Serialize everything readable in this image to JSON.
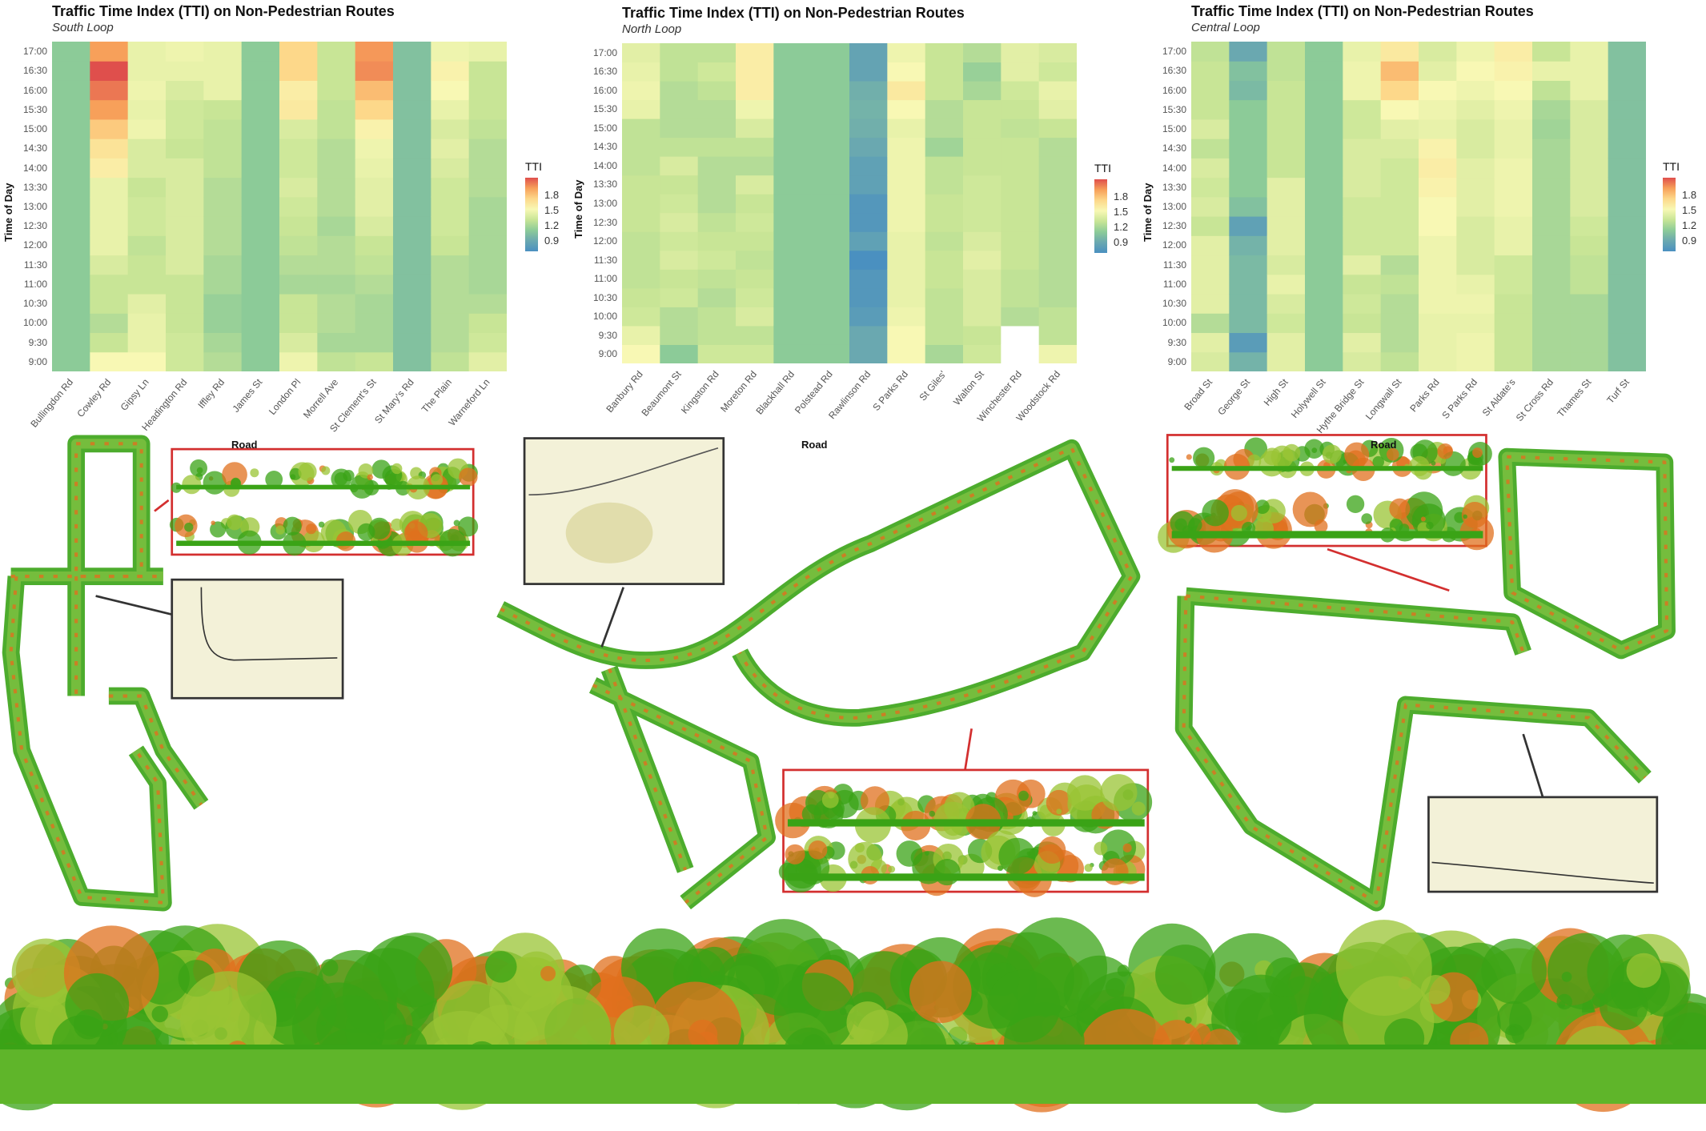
{
  "legend": {
    "title": "TTI",
    "ticks": [
      "1.8",
      "1.5",
      "1.2",
      "0.9"
    ]
  },
  "times": [
    "9:00",
    "9:30",
    "10:00",
    "10:30",
    "11:00",
    "11:30",
    "12:00",
    "12:30",
    "13:00",
    "13:30",
    "14:00",
    "14:30",
    "15:00",
    "15:30",
    "16:00",
    "16:30",
    "17:00"
  ],
  "colors": {
    "inset_red": "#d32f2f",
    "inset_black": "#333333",
    "cloud_green": "#3aa316",
    "cloud_orange": "#e0701e"
  },
  "chart_data": [
    {
      "type": "heatmap",
      "title": "Traffic Time Index (TTI) on Non-Pedestrian Routes",
      "subtitle": "South Loop",
      "xlabel": "Road",
      "ylabel": "Time of Day",
      "legend": "right",
      "color_range": [
        0.85,
        1.95
      ],
      "categories": [
        "Bullingdon Rd",
        "Cowley Rd",
        "Gipsy Ln",
        "Headington Rd",
        "Iffley Rd",
        "James St",
        "London Pl",
        "Morrell Ave",
        "St Clement's St",
        "St Mary's Rd",
        "The Plain",
        "Warneford Ln"
      ],
      "values": [
        [
          1.05,
          1.05,
          1.05,
          1.05,
          1.05,
          1.05,
          1.05,
          1.05,
          1.05,
          1.05,
          1.05,
          1.05,
          1.05,
          1.05,
          1.05,
          1.05,
          1.05
        ],
        [
          1.35,
          1.2,
          1.15,
          1.2,
          1.2,
          1.25,
          1.3,
          1.3,
          1.3,
          1.3,
          1.4,
          1.45,
          1.55,
          1.7,
          1.8,
          1.9,
          1.7
        ],
        [
          1.35,
          1.3,
          1.3,
          1.28,
          1.2,
          1.2,
          1.18,
          1.22,
          1.22,
          1.2,
          1.25,
          1.25,
          1.32,
          1.3,
          1.32,
          1.3,
          1.3
        ],
        [
          1.22,
          1.22,
          1.2,
          1.2,
          1.2,
          1.25,
          1.25,
          1.25,
          1.25,
          1.25,
          1.25,
          1.2,
          1.22,
          1.22,
          1.25,
          1.3,
          1.32
        ],
        [
          1.15,
          1.12,
          1.08,
          1.08,
          1.12,
          1.12,
          1.15,
          1.15,
          1.15,
          1.15,
          1.18,
          1.18,
          1.18,
          1.2,
          1.3,
          1.3,
          1.3
        ],
        [
          1.05,
          1.05,
          1.05,
          1.05,
          1.05,
          1.05,
          1.05,
          1.05,
          1.05,
          1.05,
          1.05,
          1.05,
          1.05,
          1.05,
          1.05,
          1.05,
          1.05
        ],
        [
          1.32,
          1.25,
          1.2,
          1.2,
          1.12,
          1.15,
          1.18,
          1.2,
          1.22,
          1.25,
          1.22,
          1.22,
          1.25,
          1.42,
          1.4,
          1.5,
          1.5
        ],
        [
          1.18,
          1.12,
          1.15,
          1.15,
          1.12,
          1.15,
          1.15,
          1.12,
          1.15,
          1.15,
          1.15,
          1.15,
          1.18,
          1.18,
          1.2,
          1.2,
          1.2
        ],
        [
          1.2,
          1.12,
          1.12,
          1.12,
          1.15,
          1.18,
          1.2,
          1.25,
          1.28,
          1.28,
          1.3,
          1.32,
          1.38,
          1.5,
          1.6,
          1.75,
          1.72
        ],
        [
          1.02,
          1.02,
          1.02,
          1.02,
          1.02,
          1.02,
          1.02,
          1.02,
          1.02,
          1.02,
          1.02,
          1.02,
          1.02,
          1.02,
          1.02,
          1.02,
          1.02
        ],
        [
          1.18,
          1.15,
          1.15,
          1.15,
          1.15,
          1.15,
          1.2,
          1.22,
          1.22,
          1.22,
          1.25,
          1.28,
          1.25,
          1.3,
          1.35,
          1.38,
          1.32
        ],
        [
          1.28,
          1.22,
          1.2,
          1.15,
          1.12,
          1.12,
          1.12,
          1.12,
          1.12,
          1.15,
          1.15,
          1.15,
          1.18,
          1.2,
          1.2,
          1.2,
          1.3
        ]
      ]
    },
    {
      "type": "heatmap",
      "title": "Traffic Time Index (TTI) on Non-Pedestrian Routes",
      "subtitle": "North Loop",
      "xlabel": "Road",
      "ylabel": "Time of Day",
      "legend": "right",
      "color_range": [
        0.85,
        1.95
      ],
      "categories": [
        "Banbury Rd",
        "Beaumont St",
        "Kingston Rd",
        "Moreton Rd",
        "Blackhall Rd",
        "Polstead Rd",
        "Rawlinson Rd",
        "S Parks Rd",
        "St Giles'",
        "Walton St",
        "Winchester Rd",
        "Woodstock Rd"
      ],
      "values": [
        [
          1.35,
          1.3,
          1.22,
          1.2,
          1.18,
          1.18,
          1.18,
          1.2,
          1.2,
          1.2,
          1.18,
          1.18,
          1.18,
          1.3,
          1.32,
          1.3,
          1.28
        ],
        [
          1.05,
          1.15,
          1.15,
          1.22,
          1.2,
          1.25,
          1.22,
          1.25,
          1.22,
          1.2,
          1.25,
          1.18,
          1.15,
          1.15,
          1.15,
          1.18,
          1.18
        ],
        [
          1.22,
          1.18,
          1.18,
          1.15,
          1.18,
          1.22,
          1.2,
          1.18,
          1.15,
          1.15,
          1.15,
          1.18,
          1.15,
          1.15,
          1.18,
          1.22,
          1.18
        ],
        [
          1.22,
          1.18,
          1.25,
          1.22,
          1.2,
          1.18,
          1.2,
          1.22,
          1.2,
          1.25,
          1.15,
          1.18,
          1.25,
          1.32,
          1.4,
          1.4,
          1.4
        ],
        [
          1.05,
          1.05,
          1.05,
          1.05,
          1.05,
          1.05,
          1.05,
          1.05,
          1.05,
          1.05,
          1.05,
          1.05,
          1.05,
          1.05,
          1.05,
          1.05,
          1.05
        ],
        [
          1.05,
          1.05,
          1.05,
          1.05,
          1.05,
          1.05,
          1.05,
          1.05,
          1.05,
          1.05,
          1.05,
          1.05,
          1.05,
          1.05,
          1.05,
          1.05,
          1.05
        ],
        [
          0.95,
          0.95,
          0.9,
          0.88,
          0.88,
          0.85,
          0.92,
          0.88,
          0.88,
          0.92,
          0.92,
          0.95,
          0.97,
          0.98,
          0.97,
          0.93,
          0.93
        ],
        [
          1.35,
          1.35,
          1.32,
          1.3,
          1.3,
          1.3,
          1.3,
          1.32,
          1.32,
          1.32,
          1.32,
          1.32,
          1.3,
          1.35,
          1.42,
          1.35,
          1.32
        ],
        [
          1.12,
          1.18,
          1.18,
          1.18,
          1.2,
          1.2,
          1.18,
          1.2,
          1.2,
          1.18,
          1.18,
          1.1,
          1.15,
          1.15,
          1.2,
          1.2,
          1.2
        ],
        [
          1.22,
          1.2,
          1.25,
          1.25,
          1.25,
          1.28,
          1.25,
          1.22,
          1.22,
          1.22,
          1.2,
          1.2,
          1.2,
          1.2,
          1.12,
          1.08,
          1.15
        ],
        [
          null,
          null,
          1.15,
          1.18,
          1.18,
          1.2,
          1.2,
          1.2,
          1.2,
          1.2,
          1.2,
          1.2,
          1.18,
          1.2,
          1.22,
          1.28,
          1.28
        ],
        [
          1.32,
          1.18,
          1.18,
          1.15,
          1.15,
          1.15,
          1.15,
          1.15,
          1.15,
          1.15,
          1.15,
          1.15,
          1.2,
          1.28,
          1.3,
          1.22,
          1.25
        ]
      ]
    },
    {
      "type": "heatmap",
      "title": "Traffic Time Index (TTI) on Non-Pedestrian Routes",
      "subtitle": "Central Loop",
      "xlabel": "Road",
      "ylabel": "Time of Day",
      "legend": "right",
      "color_range": [
        0.85,
        1.95
      ],
      "categories": [
        "Broad St",
        "George St",
        "High St",
        "Holywell St",
        "Hythe Bridge St",
        "Longwall St",
        "Parks Rd",
        "S Parks Rd",
        "St Aldate's",
        "St Cross Rd",
        "Thames St",
        "Turf St"
      ],
      "values": [
        [
          1.25,
          1.28,
          1.15,
          1.28,
          1.28,
          1.28,
          1.28,
          1.2,
          1.25,
          1.22,
          1.25,
          1.18,
          1.25,
          1.2,
          1.2,
          1.2,
          1.18
        ],
        [
          0.98,
          0.9,
          1.0,
          1.0,
          1.0,
          1.0,
          0.98,
          0.92,
          1.02,
          1.05,
          1.05,
          1.05,
          1.05,
          1.05,
          1.0,
          1.02,
          0.95
        ],
        [
          1.28,
          1.28,
          1.22,
          1.25,
          1.3,
          1.25,
          1.28,
          1.28,
          1.28,
          1.28,
          1.2,
          1.2,
          1.2,
          1.2,
          1.2,
          1.18,
          1.18
        ],
        [
          1.05,
          1.05,
          1.05,
          1.05,
          1.05,
          1.05,
          1.05,
          1.05,
          1.05,
          1.05,
          1.05,
          1.05,
          1.05,
          1.05,
          1.05,
          1.05,
          1.05
        ],
        [
          1.25,
          1.28,
          1.2,
          1.22,
          1.2,
          1.28,
          1.22,
          1.22,
          1.22,
          1.25,
          1.25,
          1.25,
          1.22,
          1.22,
          1.32,
          1.32,
          1.3
        ],
        [
          1.18,
          1.15,
          1.15,
          1.15,
          1.18,
          1.15,
          1.22,
          1.22,
          1.22,
          1.22,
          1.22,
          1.25,
          1.28,
          1.35,
          1.5,
          1.6,
          1.42
        ],
        [
          1.3,
          1.3,
          1.3,
          1.32,
          1.32,
          1.32,
          1.32,
          1.35,
          1.35,
          1.38,
          1.4,
          1.38,
          1.3,
          1.32,
          1.35,
          1.28,
          1.25
        ],
        [
          1.32,
          1.32,
          1.3,
          1.32,
          1.3,
          1.25,
          1.25,
          1.25,
          1.28,
          1.28,
          1.28,
          1.25,
          1.25,
          1.28,
          1.32,
          1.35,
          1.32
        ],
        [
          1.2,
          1.2,
          1.2,
          1.2,
          1.22,
          1.22,
          1.3,
          1.3,
          1.32,
          1.32,
          1.32,
          1.3,
          1.3,
          1.32,
          1.35,
          1.38,
          1.4
        ],
        [
          1.12,
          1.12,
          1.12,
          1.12,
          1.12,
          1.12,
          1.12,
          1.12,
          1.12,
          1.12,
          1.12,
          1.12,
          1.1,
          1.12,
          1.18,
          1.3,
          1.2
        ],
        [
          1.12,
          1.12,
          1.12,
          1.12,
          1.18,
          1.18,
          1.2,
          1.22,
          1.25,
          1.25,
          1.25,
          1.25,
          1.25,
          1.25,
          1.3,
          1.3,
          1.3
        ],
        [
          1.02,
          1.02,
          1.02,
          1.02,
          1.02,
          1.02,
          1.02,
          1.02,
          1.02,
          1.02,
          1.02,
          1.02,
          1.02,
          1.02,
          1.02,
          1.02,
          1.02
        ]
      ]
    }
  ]
}
